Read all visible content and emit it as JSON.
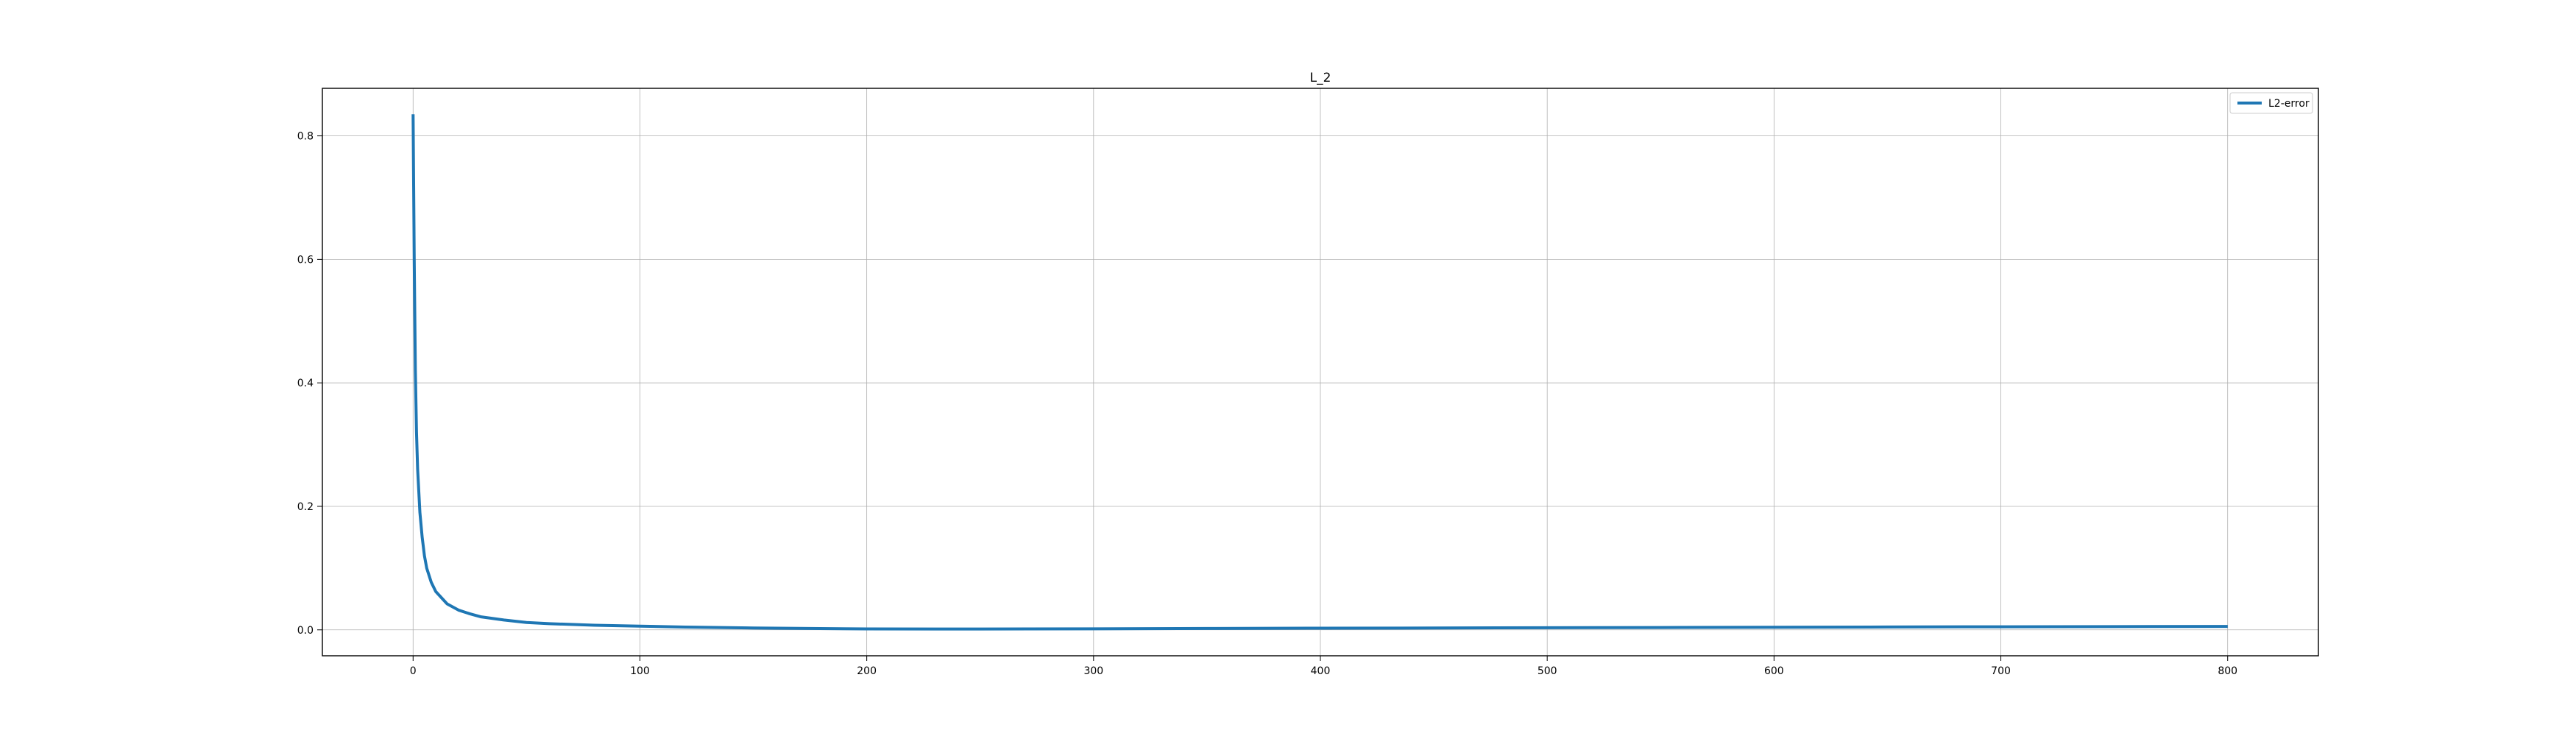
{
  "chart_data": {
    "type": "line",
    "title": "L_2",
    "xlabel": "",
    "ylabel": "",
    "xlim": [
      -40,
      840
    ],
    "ylim": [
      -0.042,
      0.877
    ],
    "x_ticks": [
      0,
      100,
      200,
      300,
      400,
      500,
      600,
      700,
      800
    ],
    "y_ticks": [
      0.0,
      0.2,
      0.4,
      0.6,
      0.8
    ],
    "grid": true,
    "legend_position": "top-right",
    "series": [
      {
        "name": "L2-error",
        "color": "#1f77b4",
        "points": [
          [
            0,
            0.835
          ],
          [
            0.5,
            0.6
          ],
          [
            1,
            0.42
          ],
          [
            1.5,
            0.32
          ],
          [
            2,
            0.26
          ],
          [
            3,
            0.19
          ],
          [
            4,
            0.15
          ],
          [
            5,
            0.12
          ],
          [
            6,
            0.1
          ],
          [
            8,
            0.077
          ],
          [
            10,
            0.062
          ],
          [
            15,
            0.042
          ],
          [
            20,
            0.032
          ],
          [
            25,
            0.026
          ],
          [
            30,
            0.021
          ],
          [
            40,
            0.016
          ],
          [
            50,
            0.012
          ],
          [
            60,
            0.01
          ],
          [
            80,
            0.0075
          ],
          [
            100,
            0.006
          ],
          [
            120,
            0.0045
          ],
          [
            150,
            0.003
          ],
          [
            200,
            0.0015
          ],
          [
            250,
            0.0013
          ],
          [
            300,
            0.0017
          ],
          [
            350,
            0.0022
          ],
          [
            400,
            0.0027
          ],
          [
            450,
            0.003
          ],
          [
            500,
            0.0035
          ],
          [
            550,
            0.0038
          ],
          [
            600,
            0.0042
          ],
          [
            650,
            0.0046
          ],
          [
            700,
            0.005
          ],
          [
            750,
            0.0053
          ],
          [
            800,
            0.0055
          ]
        ]
      }
    ]
  }
}
